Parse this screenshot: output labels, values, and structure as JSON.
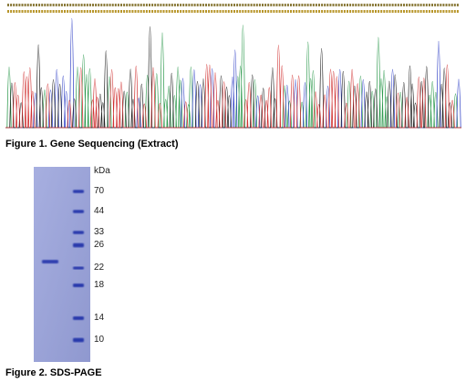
{
  "figure1": {
    "caption": "Figure 1. Gene Sequencing (Extract)",
    "base_colors": {
      "A": "#2e9a4e",
      "C": "#3848c8",
      "G": "#222222",
      "T": "#d03030"
    }
  },
  "figure2": {
    "caption": "Figure 2. SDS-PAGE",
    "unit": "kDa",
    "marker_kda": [
      "70",
      "44",
      "33",
      "26",
      "22",
      "18",
      "14",
      "10"
    ],
    "gel_color": "#9aa3d6",
    "band_color": "#1c2fa8"
  }
}
